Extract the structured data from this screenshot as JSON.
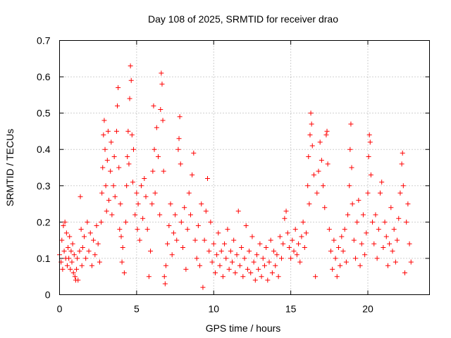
{
  "chart_data": {
    "type": "scatter",
    "title": "Day 108 of 2025, SRMTID for receiver drao",
    "xlabel": "GPS time / hours",
    "ylabel": "SRMTID / TECUs",
    "xlim": [
      0,
      24
    ],
    "ylim": [
      0,
      0.7
    ],
    "xticks": [
      0,
      5,
      10,
      15,
      20
    ],
    "xtick_labels": [
      "0",
      "5",
      "10",
      "15",
      "20"
    ],
    "yticks": [
      0,
      0.1,
      0.2,
      0.3,
      0.4,
      0.5,
      0.6,
      0.7
    ],
    "ytick_labels": [
      "0",
      "0.1",
      "0.2",
      "0.3",
      "0.4",
      "0.5",
      "0.6",
      "0.7"
    ],
    "grid": true,
    "marker": "plus",
    "marker_color": "#ff0000",
    "series": [
      {
        "name": "SRMTID",
        "points": [
          [
            0.0,
            0.11
          ],
          [
            0.1,
            0.09
          ],
          [
            0.15,
            0.15
          ],
          [
            0.2,
            0.07
          ],
          [
            0.25,
            0.19
          ],
          [
            0.3,
            0.12
          ],
          [
            0.35,
            0.2
          ],
          [
            0.4,
            0.1
          ],
          [
            0.45,
            0.17
          ],
          [
            0.5,
            0.08
          ],
          [
            0.55,
            0.13
          ],
          [
            0.6,
            0.1
          ],
          [
            0.65,
            0.16
          ],
          [
            0.7,
            0.07
          ],
          [
            0.75,
            0.12
          ],
          [
            0.8,
            0.09
          ],
          [
            0.85,
            0.14
          ],
          [
            0.9,
            0.06
          ],
          [
            0.95,
            0.11
          ],
          [
            1.0,
            0.05
          ],
          [
            1.05,
            0.04
          ],
          [
            1.1,
            0.07
          ],
          [
            1.15,
            0.1
          ],
          [
            1.2,
            0.04
          ],
          [
            1.3,
            0.12
          ],
          [
            1.35,
            0.27
          ],
          [
            1.4,
            0.18
          ],
          [
            1.45,
            0.08
          ],
          [
            1.5,
            0.13
          ],
          [
            1.6,
            0.16
          ],
          [
            1.7,
            0.1
          ],
          [
            1.8,
            0.2
          ],
          [
            1.9,
            0.12
          ],
          [
            2.0,
            0.17
          ],
          [
            2.1,
            0.08
          ],
          [
            2.2,
            0.15
          ],
          [
            2.3,
            0.11
          ],
          [
            2.4,
            0.19
          ],
          [
            2.5,
            0.14
          ],
          [
            2.6,
            0.09
          ],
          [
            2.7,
            0.2
          ],
          [
            2.75,
            0.28
          ],
          [
            2.8,
            0.35
          ],
          [
            2.85,
            0.44
          ],
          [
            2.9,
            0.48
          ],
          [
            2.95,
            0.4
          ],
          [
            3.0,
            0.3
          ],
          [
            3.05,
            0.23
          ],
          [
            3.1,
            0.37
          ],
          [
            3.15,
            0.45
          ],
          [
            3.2,
            0.26
          ],
          [
            3.3,
            0.34
          ],
          [
            3.35,
            0.42
          ],
          [
            3.4,
            0.22
          ],
          [
            3.5,
            0.3
          ],
          [
            3.55,
            0.38
          ],
          [
            3.6,
            0.27
          ],
          [
            3.7,
            0.45
          ],
          [
            3.75,
            0.52
          ],
          [
            3.8,
            0.57
          ],
          [
            3.85,
            0.35
          ],
          [
            3.9,
            0.18
          ],
          [
            3.95,
            0.25
          ],
          [
            4.0,
            0.16
          ],
          [
            4.05,
            0.09
          ],
          [
            4.1,
            0.13
          ],
          [
            4.2,
            0.06
          ],
          [
            4.3,
            0.2
          ],
          [
            4.35,
            0.3
          ],
          [
            4.4,
            0.38
          ],
          [
            4.45,
            0.45
          ],
          [
            4.5,
            0.36
          ],
          [
            4.55,
            0.54
          ],
          [
            4.6,
            0.63
          ],
          [
            4.65,
            0.59
          ],
          [
            4.7,
            0.44
          ],
          [
            4.75,
            0.31
          ],
          [
            4.8,
            0.4
          ],
          [
            4.9,
            0.22
          ],
          [
            5.0,
            0.28
          ],
          [
            5.05,
            0.18
          ],
          [
            5.1,
            0.25
          ],
          [
            5.2,
            0.15
          ],
          [
            5.3,
            0.3
          ],
          [
            5.4,
            0.21
          ],
          [
            5.5,
            0.32
          ],
          [
            5.6,
            0.27
          ],
          [
            5.7,
            0.18
          ],
          [
            5.8,
            0.05
          ],
          [
            5.9,
            0.12
          ],
          [
            6.0,
            0.25
          ],
          [
            6.05,
            0.34
          ],
          [
            6.1,
            0.52
          ],
          [
            6.15,
            0.4
          ],
          [
            6.2,
            0.28
          ],
          [
            6.3,
            0.46
          ],
          [
            6.4,
            0.38
          ],
          [
            6.5,
            0.22
          ],
          [
            6.55,
            0.51
          ],
          [
            6.6,
            0.61
          ],
          [
            6.65,
            0.58
          ],
          [
            6.7,
            0.48
          ],
          [
            6.75,
            0.34
          ],
          [
            6.8,
            0.05
          ],
          [
            6.85,
            0.03
          ],
          [
            6.9,
            0.08
          ],
          [
            7.0,
            0.14
          ],
          [
            7.1,
            0.19
          ],
          [
            7.2,
            0.25
          ],
          [
            7.3,
            0.11
          ],
          [
            7.4,
            0.17
          ],
          [
            7.5,
            0.22
          ],
          [
            7.6,
            0.15
          ],
          [
            7.7,
            0.4
          ],
          [
            7.75,
            0.43
          ],
          [
            7.8,
            0.49
          ],
          [
            7.85,
            0.36
          ],
          [
            7.9,
            0.2
          ],
          [
            8.0,
            0.13
          ],
          [
            8.1,
            0.24
          ],
          [
            8.2,
            0.07
          ],
          [
            8.3,
            0.18
          ],
          [
            8.4,
            0.28
          ],
          [
            8.5,
            0.22
          ],
          [
            8.6,
            0.33
          ],
          [
            8.7,
            0.39
          ],
          [
            8.8,
            0.15
          ],
          [
            8.9,
            0.1
          ],
          [
            9.0,
            0.19
          ],
          [
            9.1,
            0.08
          ],
          [
            9.2,
            0.25
          ],
          [
            9.3,
            0.02
          ],
          [
            9.4,
            0.15
          ],
          [
            9.5,
            0.23
          ],
          [
            9.6,
            0.32
          ],
          [
            9.7,
            0.12
          ],
          [
            9.8,
            0.2
          ],
          [
            9.9,
            0.09
          ],
          [
            10.0,
            0.14
          ],
          [
            10.1,
            0.06
          ],
          [
            10.2,
            0.11
          ],
          [
            10.3,
            0.17
          ],
          [
            10.4,
            0.08
          ],
          [
            10.5,
            0.12
          ],
          [
            10.6,
            0.05
          ],
          [
            10.7,
            0.14
          ],
          [
            10.8,
            0.1
          ],
          [
            10.9,
            0.18
          ],
          [
            11.0,
            0.07
          ],
          [
            11.1,
            0.12
          ],
          [
            11.2,
            0.09
          ],
          [
            11.3,
            0.15
          ],
          [
            11.4,
            0.06
          ],
          [
            11.5,
            0.11
          ],
          [
            11.6,
            0.23
          ],
          [
            11.7,
            0.08
          ],
          [
            11.8,
            0.13
          ],
          [
            11.9,
            0.05
          ],
          [
            12.0,
            0.1
          ],
          [
            12.1,
            0.19
          ],
          [
            12.2,
            0.07
          ],
          [
            12.3,
            0.12
          ],
          [
            12.4,
            0.06
          ],
          [
            12.5,
            0.16
          ],
          [
            12.6,
            0.09
          ],
          [
            12.7,
            0.04
          ],
          [
            12.8,
            0.11
          ],
          [
            12.9,
            0.07
          ],
          [
            13.0,
            0.14
          ],
          [
            13.1,
            0.05
          ],
          [
            13.2,
            0.1
          ],
          [
            13.3,
            0.08
          ],
          [
            13.4,
            0.13
          ],
          [
            13.5,
            0.04
          ],
          [
            13.6,
            0.09
          ],
          [
            13.7,
            0.15
          ],
          [
            13.8,
            0.06
          ],
          [
            13.9,
            0.12
          ],
          [
            14.0,
            0.08
          ],
          [
            14.1,
            0.11
          ],
          [
            14.2,
            0.05
          ],
          [
            14.3,
            0.16
          ],
          [
            14.4,
            0.1
          ],
          [
            14.5,
            0.14
          ],
          [
            14.6,
            0.21
          ],
          [
            14.7,
            0.23
          ],
          [
            14.8,
            0.17
          ],
          [
            14.9,
            0.13
          ],
          [
            15.0,
            0.1
          ],
          [
            15.1,
            0.15
          ],
          [
            15.2,
            0.12
          ],
          [
            15.3,
            0.18
          ],
          [
            15.4,
            0.11
          ],
          [
            15.5,
            0.14
          ],
          [
            15.6,
            0.09
          ],
          [
            15.7,
            0.16
          ],
          [
            15.8,
            0.2
          ],
          [
            15.9,
            0.13
          ],
          [
            16.0,
            0.17
          ],
          [
            16.1,
            0.3
          ],
          [
            16.15,
            0.38
          ],
          [
            16.2,
            0.25
          ],
          [
            16.25,
            0.44
          ],
          [
            16.3,
            0.5
          ],
          [
            16.35,
            0.47
          ],
          [
            16.4,
            0.41
          ],
          [
            16.5,
            0.33
          ],
          [
            16.6,
            0.05
          ],
          [
            16.7,
            0.28
          ],
          [
            16.8,
            0.34
          ],
          [
            16.9,
            0.42
          ],
          [
            17.0,
            0.37
          ],
          [
            17.1,
            0.3
          ],
          [
            17.2,
            0.24
          ],
          [
            17.3,
            0.44
          ],
          [
            17.35,
            0.45
          ],
          [
            17.4,
            0.36
          ],
          [
            17.5,
            0.18
          ],
          [
            17.6,
            0.12
          ],
          [
            17.7,
            0.07
          ],
          [
            17.8,
            0.15
          ],
          [
            17.9,
            0.1
          ],
          [
            18.0,
            0.05
          ],
          [
            18.1,
            0.13
          ],
          [
            18.2,
            0.08
          ],
          [
            18.3,
            0.16
          ],
          [
            18.4,
            0.12
          ],
          [
            18.5,
            0.18
          ],
          [
            18.6,
            0.09
          ],
          [
            18.7,
            0.22
          ],
          [
            18.8,
            0.3
          ],
          [
            18.85,
            0.4
          ],
          [
            18.9,
            0.47
          ],
          [
            18.95,
            0.35
          ],
          [
            19.0,
            0.25
          ],
          [
            19.1,
            0.15
          ],
          [
            19.2,
            0.1
          ],
          [
            19.3,
            0.2
          ],
          [
            19.4,
            0.26
          ],
          [
            19.5,
            0.08
          ],
          [
            19.6,
            0.14
          ],
          [
            19.7,
            0.22
          ],
          [
            19.8,
            0.11
          ],
          [
            19.9,
            0.17
          ],
          [
            20.0,
            0.28
          ],
          [
            20.05,
            0.38
          ],
          [
            20.1,
            0.44
          ],
          [
            20.15,
            0.42
          ],
          [
            20.2,
            0.33
          ],
          [
            20.3,
            0.2
          ],
          [
            20.4,
            0.14
          ],
          [
            20.5,
            0.22
          ],
          [
            20.6,
            0.1
          ],
          [
            20.7,
            0.18
          ],
          [
            20.8,
            0.28
          ],
          [
            20.9,
            0.31
          ],
          [
            21.0,
            0.13
          ],
          [
            21.1,
            0.2
          ],
          [
            21.2,
            0.16
          ],
          [
            21.3,
            0.08
          ],
          [
            21.4,
            0.14
          ],
          [
            21.5,
            0.24
          ],
          [
            21.6,
            0.12
          ],
          [
            21.7,
            0.18
          ],
          [
            21.8,
            0.09
          ],
          [
            21.9,
            0.15
          ],
          [
            22.0,
            0.21
          ],
          [
            22.1,
            0.28
          ],
          [
            22.2,
            0.36
          ],
          [
            22.25,
            0.39
          ],
          [
            22.3,
            0.3
          ],
          [
            22.4,
            0.06
          ],
          [
            22.5,
            0.2
          ],
          [
            22.6,
            0.25
          ],
          [
            22.7,
            0.14
          ],
          [
            22.8,
            0.09
          ]
        ]
      }
    ]
  }
}
